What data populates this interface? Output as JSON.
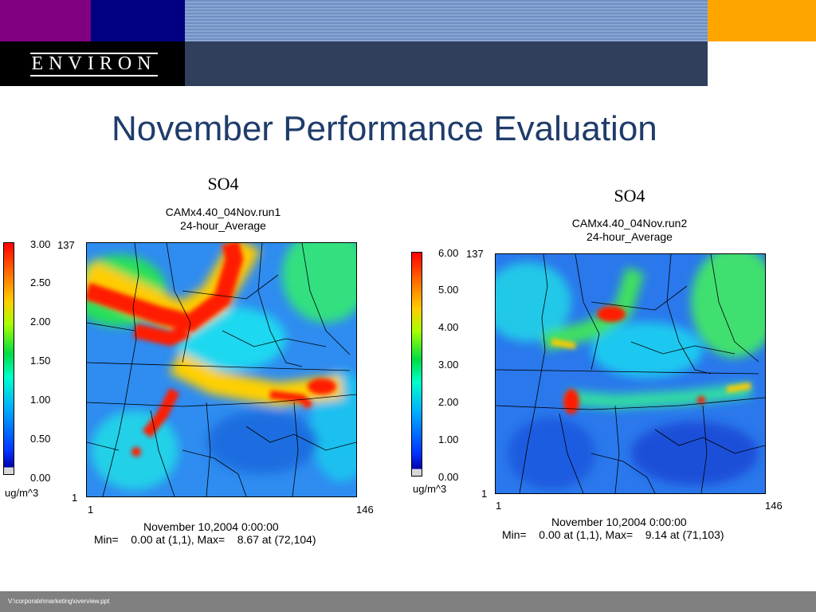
{
  "header": {
    "logo_text": "ENVIRON"
  },
  "slide": {
    "title": "November Performance Evaluation"
  },
  "panels": [
    {
      "species": "SO4",
      "run": "CAMx4.40_04Nov.run1",
      "average": "24-hour_Average",
      "colorbar_ticks": [
        "3.00",
        "2.50",
        "2.00",
        "1.50",
        "1.00",
        "0.50",
        "0.00"
      ],
      "units": "ug/m^3",
      "y_top": "137",
      "y_bottom": "1",
      "x_left": "1",
      "x_right": "146",
      "date": "November 10,2004 0:00:00",
      "minmax": "Min=    0.00 at (1,1), Max=    8.67 at (72,104)"
    },
    {
      "species": "SO4",
      "run": "CAMx4.40_04Nov.run2",
      "average": "24-hour_Average",
      "colorbar_ticks": [
        "6.00",
        "5.00",
        "4.00",
        "3.00",
        "2.00",
        "1.00",
        "0.00"
      ],
      "units": "ug/m^3",
      "y_top": "137",
      "y_bottom": "1",
      "x_left": "1",
      "x_right": "146",
      "date": "November 10,2004 0:00:00",
      "minmax": "Min=    0.00 at (1,1), Max=    9.14 at (71,103)"
    }
  ],
  "footer": {
    "path": "V:\\corporate\\marketing\\overview.ppt"
  },
  "colors": {
    "title": "#1f3c6a",
    "map_base": "#2f8cf0",
    "hot": "#ff1a00"
  }
}
